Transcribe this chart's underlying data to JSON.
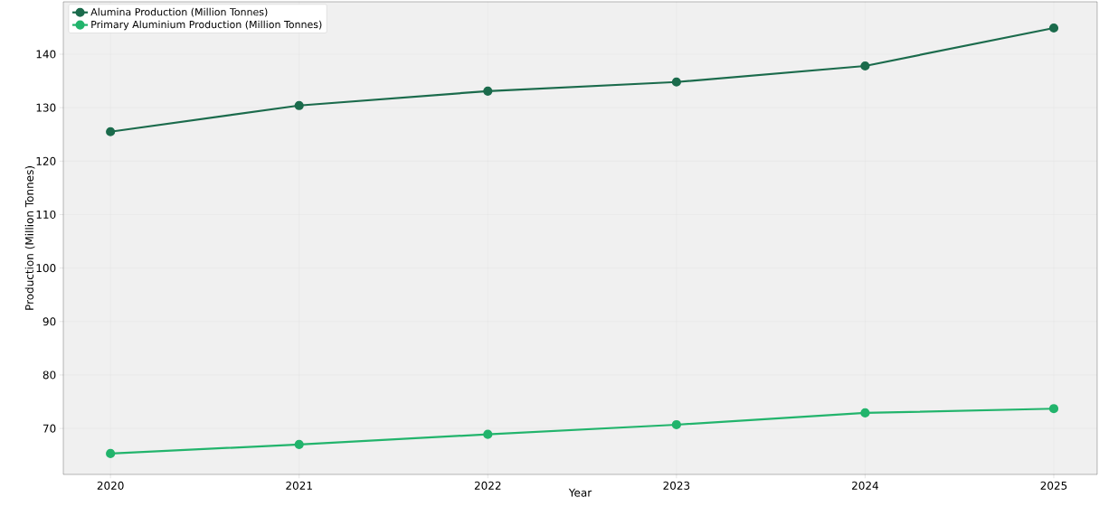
{
  "chart_data": {
    "type": "line",
    "xlabel": "Year",
    "ylabel": "Production (Million Tonnes)",
    "x": [
      2020,
      2021,
      2022,
      2023,
      2024,
      2025
    ],
    "series": [
      {
        "name": "Alumina Production (Million Tonnes)",
        "color": "#1b6b4c",
        "values": [
          125.5,
          130.4,
          133.1,
          134.8,
          137.8,
          144.9
        ]
      },
      {
        "name": "Primary Aluminium Production (Million Tonnes)",
        "color": "#22b46c",
        "values": [
          65.3,
          67.0,
          68.9,
          70.7,
          72.9,
          73.7
        ]
      }
    ],
    "xlim": [
      2019.75,
      2025.23
    ],
    "ylim": [
      61.4,
      149.8
    ],
    "xticks": [
      2020,
      2021,
      2022,
      2023,
      2024,
      2025
    ],
    "yticks": [
      70,
      80,
      90,
      100,
      110,
      120,
      130,
      140
    ],
    "grid": true,
    "legend": "top left",
    "marker": "circle",
    "line_style": "solid"
  }
}
